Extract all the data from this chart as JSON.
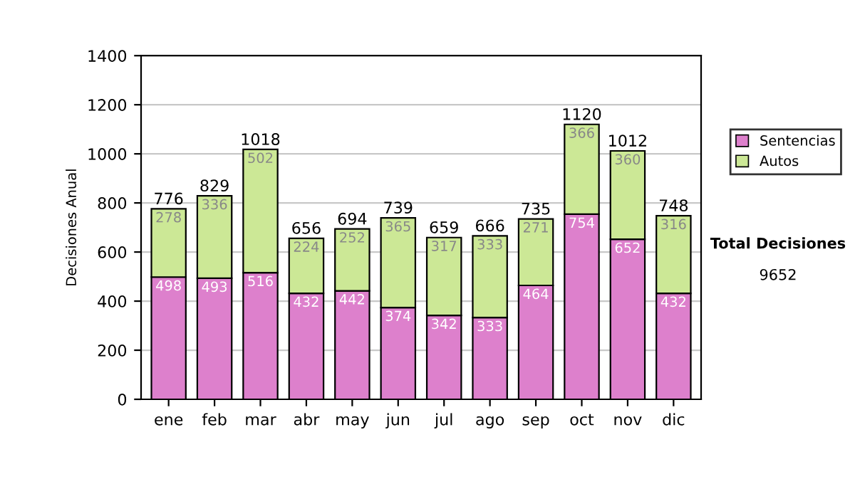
{
  "chart_data": {
    "type": "bar",
    "stacked": true,
    "ylabel": "Decisiones Anual",
    "categories": [
      "ene",
      "feb",
      "mar",
      "abr",
      "may",
      "jun",
      "jul",
      "ago",
      "sep",
      "oct",
      "nov",
      "dic"
    ],
    "series": [
      {
        "name": "Sentencias",
        "color": "#dd80cc",
        "values": [
          498,
          493,
          516,
          432,
          442,
          374,
          342,
          333,
          464,
          754,
          652,
          432
        ]
      },
      {
        "name": "Autos",
        "color": "#cce896",
        "values": [
          278,
          336,
          502,
          224,
          252,
          365,
          317,
          333,
          271,
          366,
          360,
          316
        ]
      }
    ],
    "totals": [
      "776",
      "829",
      "1018",
      "656",
      "694",
      "739",
      "659",
      "666",
      "735",
      "1120",
      "1012",
      "748"
    ],
    "data_labels": true,
    "ylim": [
      0,
      1400
    ],
    "yticks": [
      0,
      200,
      400,
      600,
      800,
      1000,
      1200,
      1400
    ],
    "grid": "y",
    "legend": "right",
    "annotations": [
      "Total Decisiones",
      "9652"
    ]
  }
}
